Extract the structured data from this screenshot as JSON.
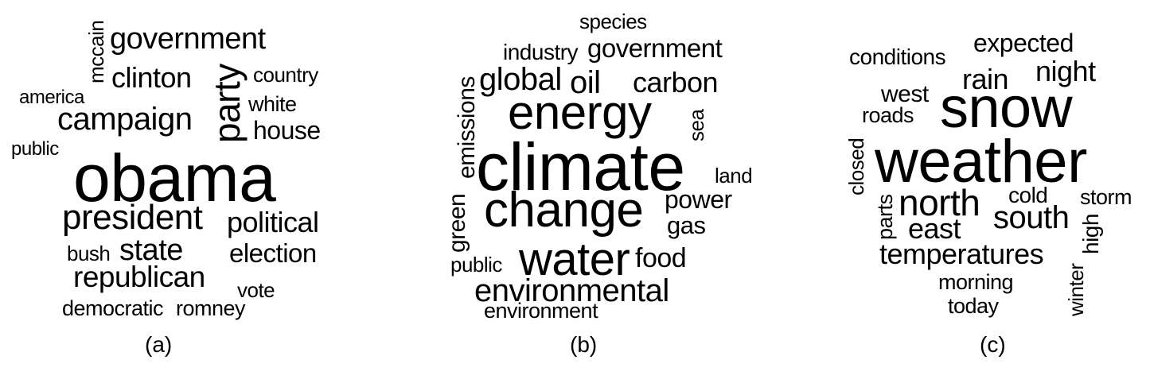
{
  "panels": [
    {
      "caption": "(a)",
      "words": [
        "mccain",
        "government",
        "clinton",
        "party",
        "country",
        "america",
        "white",
        "campaign",
        "house",
        "public",
        "obama",
        "president",
        "political",
        "bush",
        "state",
        "election",
        "republican",
        "vote",
        "democratic",
        "romney"
      ]
    },
    {
      "caption": "(b)",
      "words": [
        "species",
        "industry",
        "government",
        "emissions",
        "global",
        "oil",
        "carbon",
        "energy",
        "sea",
        "climate",
        "land",
        "green",
        "change",
        "power",
        "gas",
        "public",
        "water",
        "food",
        "environmental",
        "environment"
      ]
    },
    {
      "caption": "(c)",
      "words": [
        "expected",
        "conditions",
        "night",
        "rain",
        "west",
        "snow",
        "roads",
        "closed",
        "weather",
        "cold",
        "storm",
        "north",
        "parts",
        "high",
        "south",
        "east",
        "temperatures",
        "winter",
        "morning",
        "today"
      ]
    }
  ]
}
